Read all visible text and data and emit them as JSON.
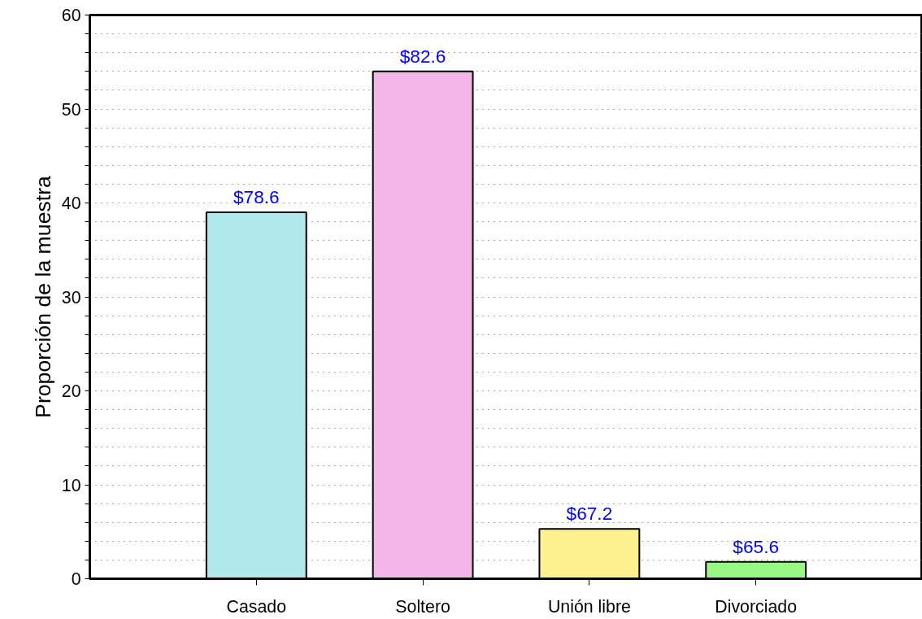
{
  "chart_data": {
    "type": "bar",
    "ylabel": "Proporción de la muestra",
    "categories": [
      "Casado",
      "Soltero",
      "Unión libre",
      "Divorciado"
    ],
    "values": [
      39,
      54,
      5.3,
      1.8
    ],
    "colors": [
      "#b0e8ec",
      "#f5b6ea",
      "#fdf08e",
      "#98f884"
    ],
    "annotations": [
      {
        "text": "$78.6",
        "x": "Casado",
        "y": 39
      },
      {
        "text": "$82.6",
        "x": "Soltero",
        "y": 54
      },
      {
        "text": "$67.2",
        "x": "Unión libre",
        "y": 5.3
      },
      {
        "text": "$65.6",
        "x": "Divorciado",
        "y": 1.8
      }
    ],
    "ylim": [
      0,
      60
    ],
    "yticks": [
      0,
      {
        "value": 2,
        "label": null
      },
      {
        "value": 4,
        "label": null
      },
      {
        "value": 6,
        "label": null
      },
      {
        "value": 8,
        "label": null
      },
      10,
      {
        "value": 12,
        "label": null
      },
      {
        "value": 14,
        "label": null
      },
      {
        "value": 16,
        "label": null
      },
      {
        "value": 18,
        "label": null
      },
      20,
      {
        "value": 22,
        "label": null
      },
      {
        "value": 24,
        "label": null
      },
      {
        "value": 26,
        "label": null
      },
      {
        "value": 28,
        "label": null
      },
      30,
      {
        "value": 32,
        "label": null
      },
      {
        "value": 34,
        "label": null
      },
      {
        "value": 36,
        "label": null
      },
      {
        "value": 38,
        "label": null
      },
      40,
      {
        "value": 42,
        "label": null
      },
      {
        "value": 44,
        "label": null
      },
      {
        "value": 46,
        "label": null
      },
      {
        "value": 48,
        "label": null
      },
      50,
      {
        "value": 52,
        "label": null
      },
      {
        "value": 54,
        "label": null
      },
      {
        "value": 56,
        "label": null
      },
      {
        "value": 58,
        "label": null
      },
      60
    ],
    "grid": "y"
  }
}
